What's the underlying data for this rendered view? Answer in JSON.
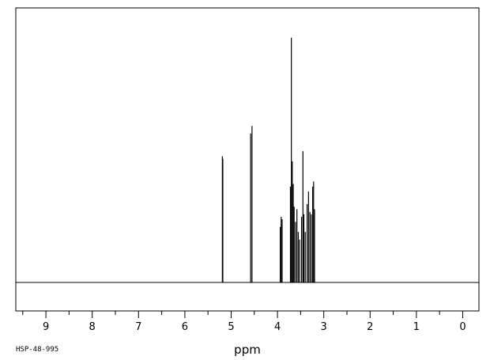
{
  "sample_id": "HSP-48-995",
  "chart_data": {
    "type": "line",
    "xlabel": "ppm",
    "ylabel": "",
    "title": "",
    "x_reversed": true,
    "xlim": [
      9.65,
      -0.35
    ],
    "ylim": [
      0,
      1.0
    ],
    "grid": false,
    "x_ticks": [
      {
        "value": 9,
        "label": "9"
      },
      {
        "value": 8,
        "label": "8"
      },
      {
        "value": 7,
        "label": "7"
      },
      {
        "value": 6,
        "label": "6"
      },
      {
        "value": 5,
        "label": "5"
      },
      {
        "value": 4,
        "label": "4"
      },
      {
        "value": 3,
        "label": "3"
      },
      {
        "value": 2,
        "label": "2"
      },
      {
        "value": 1,
        "label": "1"
      },
      {
        "value": 0,
        "label": "0"
      }
    ],
    "peaks": [
      {
        "ppm": 5.19,
        "height": 0.5
      },
      {
        "ppm": 5.18,
        "height": 0.49
      },
      {
        "ppm": 4.58,
        "height": 0.59
      },
      {
        "ppm": 4.55,
        "height": 0.62
      },
      {
        "ppm": 3.94,
        "height": 0.22
      },
      {
        "ppm": 3.92,
        "height": 0.26
      },
      {
        "ppm": 3.9,
        "height": 0.25
      },
      {
        "ppm": 3.72,
        "height": 0.38
      },
      {
        "ppm": 3.7,
        "height": 0.97
      },
      {
        "ppm": 3.68,
        "height": 0.48
      },
      {
        "ppm": 3.66,
        "height": 0.39
      },
      {
        "ppm": 3.64,
        "height": 0.3
      },
      {
        "ppm": 3.61,
        "height": 0.24
      },
      {
        "ppm": 3.58,
        "height": 0.29
      },
      {
        "ppm": 3.55,
        "height": 0.2
      },
      {
        "ppm": 3.52,
        "height": 0.17
      },
      {
        "ppm": 3.48,
        "height": 0.26
      },
      {
        "ppm": 3.45,
        "height": 0.52
      },
      {
        "ppm": 3.43,
        "height": 0.27
      },
      {
        "ppm": 3.4,
        "height": 0.2
      },
      {
        "ppm": 3.36,
        "height": 0.31
      },
      {
        "ppm": 3.33,
        "height": 0.36
      },
      {
        "ppm": 3.3,
        "height": 0.28
      },
      {
        "ppm": 3.27,
        "height": 0.27
      },
      {
        "ppm": 3.24,
        "height": 0.38
      },
      {
        "ppm": 3.22,
        "height": 0.4
      },
      {
        "ppm": 3.2,
        "height": 0.29
      }
    ]
  }
}
